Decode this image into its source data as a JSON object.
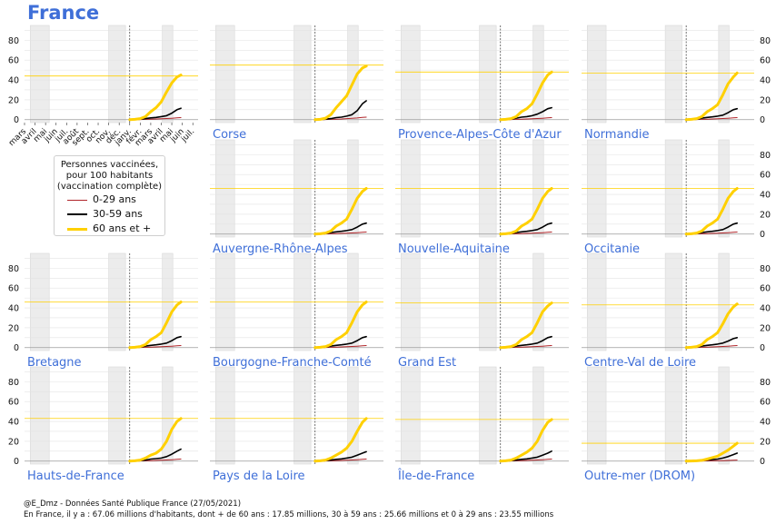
{
  "title": "France",
  "legend": {
    "title_lines": [
      "Personnes vaccinées,",
      "pour 100 habitants",
      "(vaccination complète)"
    ],
    "items": [
      {
        "label": "0-29 ans",
        "color": "#b0252a"
      },
      {
        "label": "30-59 ans",
        "color": "#000000"
      },
      {
        "label": "60 ans et +",
        "color": "#ffd000"
      }
    ]
  },
  "footer": {
    "line1": "@E_Dmz - Données Santé Publique France (27/05/2021)",
    "line2": "En France, il y a : 67.06 millions d'habitants, dont + de 60 ans : 17.85 millions, 30 à 59 ans : 25.66 millions et 0 à 29 ans : 23.55 millions"
  },
  "chart_data": {
    "type": "line",
    "x_tick_labels": [
      "mars",
      "avril",
      "mai",
      "juin",
      "juil.",
      "août",
      "sept.",
      "oct.",
      "nov.",
      "déc.",
      "janv.",
      "févr.",
      "mars",
      "avril",
      "mai",
      "juin",
      "juil."
    ],
    "yticks": [
      0,
      20,
      40,
      60,
      80
    ],
    "ylim": [
      -3,
      95
    ],
    "x_range_months": [
      0,
      16.5
    ],
    "shaded_periods_months": [
      [
        0.55,
        2.35
      ],
      [
        8.0,
        9.6
      ],
      [
        13.1,
        14.1
      ]
    ],
    "vaccination_start_month": 10.0,
    "x_months": [
      10,
      10.5,
      11,
      11.5,
      12,
      12.5,
      13,
      13.5,
      14,
      14.5,
      14.87
    ],
    "colors": {
      "0-29": "#b0252a",
      "30-59": "#000000",
      "60+": "#ffd000"
    },
    "panels": [
      {
        "region": "France",
        "threshold": 44,
        "s60": [
          0,
          0.3,
          1,
          3,
          8,
          12,
          18,
          28,
          37,
          43,
          45
        ],
        "s30": [
          0,
          0.1,
          0.5,
          1,
          1.8,
          2.2,
          3,
          4,
          6.5,
          10,
          11.5
        ],
        "s0": [
          0,
          0,
          0.1,
          0.3,
          0.5,
          0.7,
          0.9,
          1.1,
          1.4,
          1.8,
          2
        ]
      },
      {
        "region": "Corse",
        "threshold": 55,
        "s60": [
          0,
          0.3,
          1.5,
          5,
          12,
          18,
          24,
          35,
          46,
          52,
          54
        ],
        "s30": [
          0,
          0.1,
          0.5,
          1,
          2,
          2.5,
          3.5,
          5,
          9,
          16,
          19
        ],
        "s0": [
          0,
          0,
          0.1,
          0.3,
          0.5,
          0.7,
          1,
          1.3,
          1.7,
          2.2,
          2.5
        ]
      },
      {
        "region": "Provence-Alpes-Côte d'Azur",
        "threshold": 48,
        "s60": [
          0,
          0.3,
          1,
          3,
          8,
          11,
          16,
          26,
          37,
          45,
          48
        ],
        "s30": [
          0,
          0.1,
          0.5,
          1.5,
          2.5,
          3,
          4,
          5.5,
          8,
          11,
          12
        ],
        "s0": [
          0,
          0,
          0.1,
          0.3,
          0.5,
          0.7,
          0.9,
          1.1,
          1.4,
          1.8,
          2
        ]
      },
      {
        "region": "Normandie",
        "threshold": 47,
        "s60": [
          0,
          0.3,
          1,
          3,
          8,
          11,
          15,
          25,
          36,
          43,
          47
        ],
        "s30": [
          0,
          0.1,
          0.5,
          1.5,
          2.2,
          2.8,
          3.5,
          4.5,
          7,
          10,
          11
        ],
        "s0": [
          0,
          0,
          0.1,
          0.3,
          0.5,
          0.7,
          0.9,
          1.1,
          1.4,
          1.8,
          2
        ]
      },
      {
        "region": "Auvergne-Rhône-Alpes",
        "threshold": 46,
        "s60": [
          0,
          0.3,
          1,
          3,
          8,
          11,
          15,
          25,
          36,
          43,
          46
        ],
        "s30": [
          0,
          0.1,
          0.5,
          1.5,
          2.2,
          2.8,
          3.5,
          4.5,
          7,
          10,
          11
        ],
        "s0": [
          0,
          0,
          0.1,
          0.3,
          0.5,
          0.7,
          0.9,
          1.1,
          1.4,
          1.8,
          2
        ]
      },
      {
        "region": "Nouvelle-Aquitaine",
        "threshold": 46,
        "s60": [
          0,
          0.3,
          1,
          3,
          8,
          11,
          15,
          25,
          36,
          43,
          46
        ],
        "s30": [
          0,
          0.1,
          0.5,
          1.5,
          2.2,
          2.8,
          3.5,
          4.5,
          7,
          10,
          11
        ],
        "s0": [
          0,
          0,
          0.1,
          0.3,
          0.5,
          0.7,
          0.9,
          1.1,
          1.4,
          1.8,
          2
        ]
      },
      {
        "region": "Occitanie",
        "threshold": 46,
        "s60": [
          0,
          0.3,
          1,
          3,
          8,
          11,
          15,
          25,
          36,
          43,
          46
        ],
        "s30": [
          0,
          0.1,
          0.5,
          1.5,
          2.2,
          2.8,
          3.5,
          4.5,
          7,
          10,
          11
        ],
        "s0": [
          0,
          0,
          0.1,
          0.3,
          0.5,
          0.7,
          0.9,
          1.1,
          1.4,
          1.8,
          2
        ]
      },
      {
        "region": "Bretagne",
        "threshold": 46,
        "s60": [
          0,
          0.3,
          1,
          3,
          8,
          11,
          15,
          25,
          36,
          43,
          46
        ],
        "s30": [
          0,
          0.1,
          0.5,
          1.5,
          2.2,
          2.8,
          3.5,
          4.5,
          7,
          10,
          11
        ],
        "s0": [
          0,
          0,
          0.1,
          0.3,
          0.5,
          0.7,
          0.9,
          1.1,
          1.4,
          1.8,
          2
        ]
      },
      {
        "region": "Bourgogne-Franche-Comté",
        "threshold": 46,
        "s60": [
          0,
          0.3,
          1,
          3,
          8,
          11,
          15,
          25,
          36,
          43,
          46
        ],
        "s30": [
          0,
          0.1,
          0.5,
          1.5,
          2.2,
          2.8,
          3.5,
          4.5,
          7,
          10,
          11
        ],
        "s0": [
          0,
          0,
          0.1,
          0.3,
          0.5,
          0.7,
          0.9,
          1.1,
          1.4,
          1.8,
          2
        ]
      },
      {
        "region": "Grand Est",
        "threshold": 45,
        "s60": [
          0,
          0.3,
          1,
          3,
          8,
          11,
          15,
          25,
          36,
          42,
          45
        ],
        "s30": [
          0,
          0.1,
          0.5,
          1.5,
          2.2,
          2.8,
          3.5,
          4.5,
          7,
          10,
          11
        ],
        "s0": [
          0,
          0,
          0.1,
          0.3,
          0.5,
          0.7,
          0.9,
          1.1,
          1.4,
          1.8,
          2
        ]
      },
      {
        "region": "Centre-Val de Loire",
        "threshold": 43,
        "s60": [
          0,
          0.3,
          1,
          3,
          8,
          11,
          15,
          24,
          34,
          41,
          44
        ],
        "s30": [
          0,
          0.1,
          0.5,
          1.5,
          2.2,
          2.8,
          3.5,
          4.5,
          6.5,
          9,
          10
        ],
        "s0": [
          0,
          0,
          0.1,
          0.3,
          0.5,
          0.7,
          0.9,
          1.1,
          1.4,
          1.8,
          2
        ]
      },
      {
        "region": "Hauts-de-France",
        "threshold": 43,
        "s60": [
          0,
          0.3,
          1,
          3,
          6,
          8,
          12,
          20,
          32,
          40,
          43
        ],
        "s30": [
          0,
          0.1,
          0.5,
          1,
          2,
          2.5,
          3,
          4.5,
          7,
          10,
          12
        ],
        "s0": [
          0,
          0,
          0.1,
          0.3,
          0.5,
          0.7,
          0.9,
          1.1,
          1.4,
          1.8,
          2
        ]
      },
      {
        "region": "Pays de la Loire",
        "threshold": 43,
        "s60": [
          0,
          0.3,
          1,
          3,
          6,
          9,
          13,
          20,
          30,
          39,
          43
        ],
        "s30": [
          0,
          0.1,
          0.5,
          1,
          1.8,
          2.2,
          3,
          4,
          6,
          8,
          9.5
        ],
        "s0": [
          0,
          0,
          0.1,
          0.3,
          0.5,
          0.7,
          0.9,
          1.1,
          1.4,
          1.8,
          2
        ]
      },
      {
        "region": "Île-de-France",
        "threshold": 42,
        "s60": [
          0,
          0.3,
          1,
          3,
          6,
          9,
          13,
          20,
          31,
          39,
          42
        ],
        "s30": [
          0,
          0.1,
          0.5,
          1,
          1.8,
          2.2,
          3,
          4,
          6,
          8,
          10
        ],
        "s0": [
          0,
          0,
          0.1,
          0.3,
          0.5,
          0.7,
          0.9,
          1.1,
          1.4,
          1.8,
          2
        ]
      },
      {
        "region": "Outre-mer (DROM)",
        "threshold": 18,
        "s60": [
          0,
          0.1,
          0.3,
          0.8,
          2,
          3.5,
          5,
          8,
          11,
          15,
          18
        ],
        "s30": [
          0,
          0,
          0.2,
          0.5,
          1,
          1.5,
          2,
          3,
          4.5,
          6.5,
          8
        ],
        "s0": [
          0,
          0,
          0.05,
          0.1,
          0.2,
          0.3,
          0.4,
          0.5,
          0.7,
          0.9,
          1
        ]
      }
    ]
  }
}
